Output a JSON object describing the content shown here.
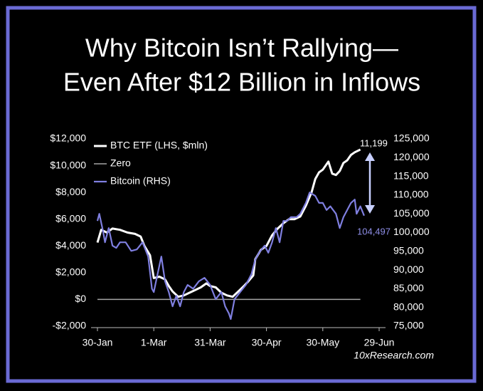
{
  "chart_data": {
    "type": "line",
    "title_lines": [
      "Why Bitcoin Isn’t Rallying—",
      "Even After $12 Billion in Inflows"
    ],
    "source": "10xResearch.com",
    "annotations": [
      "11,199",
      "104,497"
    ],
    "xlim": [
      0,
      150
    ],
    "xticks": [
      {
        "value": 0,
        "label": "30-Jan"
      },
      {
        "value": 30,
        "label": "1-Mar"
      },
      {
        "value": 60,
        "label": "31-Mar"
      },
      {
        "value": 90,
        "label": "30-Apr"
      },
      {
        "value": 120,
        "label": "30-May"
      },
      {
        "value": 150,
        "label": "29-Jun"
      }
    ],
    "ylim": [
      -2000,
      12000
    ],
    "yticks": [
      {
        "value": -2000,
        "label": "-$2,000"
      },
      {
        "value": 0,
        "label": "$0"
      },
      {
        "value": 2000,
        "label": "$2,000"
      },
      {
        "value": 4000,
        "label": "$4,000"
      },
      {
        "value": 6000,
        "label": "$6,000"
      },
      {
        "value": 8000,
        "label": "$8,000"
      },
      {
        "value": 10000,
        "label": "$10,000"
      },
      {
        "value": 12000,
        "label": "$12,000"
      }
    ],
    "y2lim": [
      75000,
      125000
    ],
    "y2ticks": [
      {
        "value": 75000,
        "label": "75,000"
      },
      {
        "value": 80000,
        "label": "80,000"
      },
      {
        "value": 85000,
        "label": "85,000"
      },
      {
        "value": 90000,
        "label": "90,000"
      },
      {
        "value": 95000,
        "label": "95,000"
      },
      {
        "value": 100000,
        "label": "100,000"
      },
      {
        "value": 105000,
        "label": "105,000"
      },
      {
        "value": 110000,
        "label": "110,000"
      },
      {
        "value": 115000,
        "label": "115,000"
      },
      {
        "value": 120000,
        "label": "120,000"
      },
      {
        "value": 125000,
        "label": "125,000"
      }
    ],
    "series": [
      {
        "name": "BTC ETF (LHS, $mln)",
        "color": "#ffffff",
        "axis": "y",
        "x": [
          0,
          2,
          5,
          8,
          12,
          16,
          20,
          23,
          25,
          28,
          30,
          33,
          36,
          38,
          40,
          43,
          46,
          49,
          52,
          55,
          58,
          60,
          63,
          66,
          69,
          72,
          75,
          78,
          80,
          83,
          84,
          87,
          90,
          93,
          96,
          99,
          102,
          105,
          108,
          111,
          114,
          116,
          118,
          120,
          123,
          125,
          127,
          129,
          131,
          133,
          135,
          137,
          140
        ],
        "values": [
          4250,
          5200,
          5000,
          5300,
          5200,
          5000,
          4900,
          4700,
          4000,
          3300,
          1600,
          1700,
          1500,
          1000,
          600,
          200,
          300,
          500,
          700,
          900,
          1200,
          1000,
          900,
          500,
          300,
          200,
          600,
          1000,
          1300,
          1800,
          3000,
          3700,
          4000,
          4800,
          5300,
          5700,
          6000,
          6000,
          6200,
          7000,
          8000,
          9000,
          9500,
          9700,
          10300,
          9400,
          9300,
          9600,
          10200,
          10400,
          10800,
          11000,
          11199
        ]
      },
      {
        "name": "Zero",
        "color": "#a6a6a6",
        "axis": "y",
        "x": [
          0,
          140
        ],
        "values": [
          0,
          0
        ]
      },
      {
        "name": "Bitcoin (RHS)",
        "color": "#7f7fe0",
        "axis": "y2",
        "x": [
          0,
          1,
          3,
          4,
          6,
          8,
          10,
          12,
          15,
          18,
          21,
          24,
          27,
          29,
          30,
          32,
          34,
          36,
          38,
          40,
          42,
          44,
          46,
          48,
          51,
          54,
          57,
          60,
          63,
          66,
          68,
          70,
          71,
          73,
          76,
          79,
          82,
          84,
          86,
          89,
          91,
          93,
          95,
          97,
          99,
          101,
          103,
          106,
          108,
          111,
          113,
          116,
          118,
          120,
          122,
          124,
          127,
          129,
          131,
          133,
          135,
          137,
          138,
          140,
          142
        ],
        "values": [
          103100,
          105000,
          100300,
          97400,
          101200,
          96500,
          95900,
          97400,
          97400,
          95100,
          95500,
          97400,
          93600,
          85000,
          84100,
          88900,
          93600,
          87000,
          84100,
          80300,
          83100,
          80300,
          84100,
          86000,
          85000,
          87000,
          87900,
          86000,
          82200,
          84100,
          80300,
          78400,
          76900,
          82200,
          84100,
          86000,
          88900,
          92700,
          94600,
          96500,
          94600,
          97400,
          101200,
          97400,
          103100,
          103100,
          104100,
          104100,
          105000,
          107900,
          110700,
          109800,
          107900,
          107900,
          106000,
          107000,
          105000,
          101200,
          104100,
          106000,
          107900,
          108800,
          105000,
          107000,
          104497
        ]
      }
    ]
  }
}
